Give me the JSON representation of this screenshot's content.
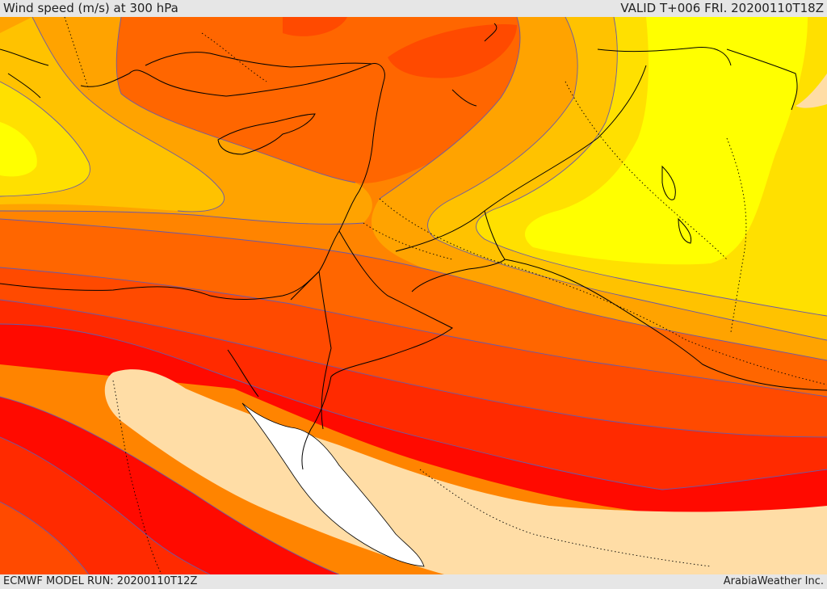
{
  "header": {
    "title": "Wind speed (m/s) at 300 hPa",
    "valid": "VALID T+006 FRI. 20200110T18Z"
  },
  "footer": {
    "model_run": "ECMWF MODEL RUN: 20200110T12Z",
    "credit": "ArabiaWeather Inc."
  },
  "colors": {
    "band_bright_red": "#ff0a00",
    "band_red": "#ff2a00",
    "band_red_orange": "#ff4a00",
    "band_orange_dark": "#ff6600",
    "band_orange": "#ff8400",
    "band_light_orange": "#ffa300",
    "band_amber": "#ffc200",
    "band_gold": "#ffe000",
    "band_yellow": "#ffff00",
    "band_tan": "#ffdda6",
    "sea": "#ffffff",
    "contour": "#6a5aa8",
    "coastline": "#000000"
  }
}
